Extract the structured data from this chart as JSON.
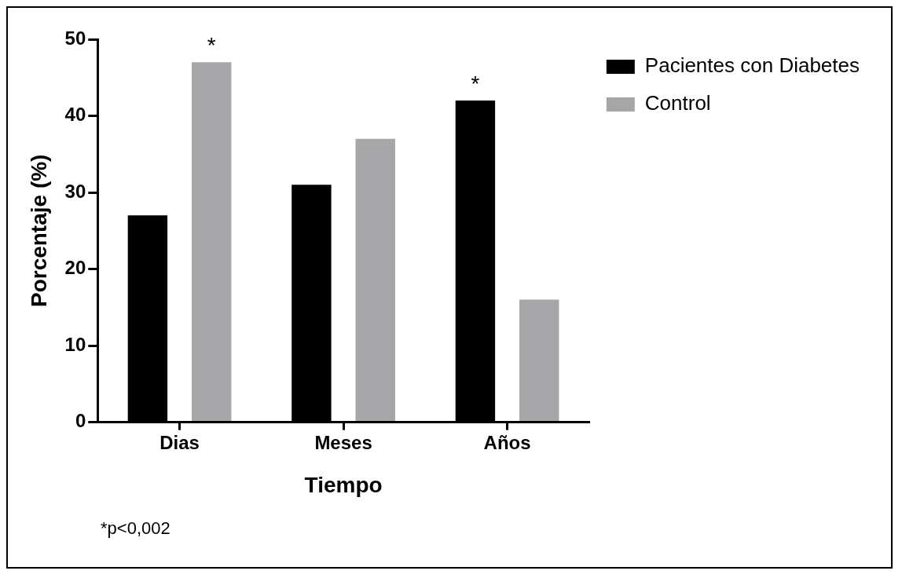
{
  "chart_data": {
    "type": "bar",
    "xlabel": "Tiempo",
    "ylabel": "Porcentaje (%)",
    "categories": [
      "Dias",
      "Meses",
      "Años"
    ],
    "series": [
      {
        "name": "Pacientes con Diabetes",
        "color": "#000000",
        "values": [
          27,
          31,
          42
        ]
      },
      {
        "name": "Control",
        "color": "#a6a6a8",
        "values": [
          47,
          37,
          16
        ]
      }
    ],
    "ylim": [
      0,
      50
    ],
    "yticks": [
      0,
      10,
      20,
      30,
      40,
      50
    ],
    "grid": false,
    "legend": "top right",
    "annotations": [
      "*",
      "*",
      "*p<0,002"
    ]
  }
}
